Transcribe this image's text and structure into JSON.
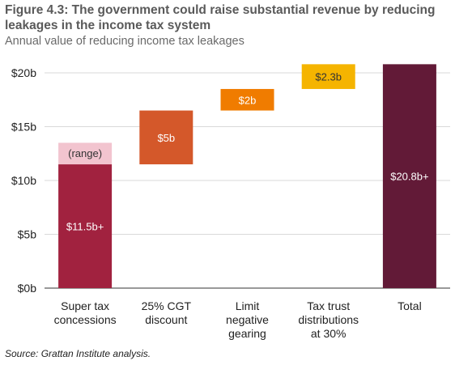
{
  "chart_data": {
    "type": "bar",
    "subtype": "waterfall",
    "title": "Figure 4.3: The government could raise substantial revenue by reducing leakages in the income tax system",
    "subtitle": "Annual value of reducing income tax leakages",
    "source": "Source: Grattan Institute analysis.",
    "ylim": [
      0,
      20
    ],
    "yticks": [
      0,
      5,
      10,
      15,
      20
    ],
    "ytick_labels": [
      "$0b",
      "$5b",
      "$10b",
      "$15b",
      "$20b"
    ],
    "grid": true,
    "categories": [
      [
        "Super tax",
        "concessions"
      ],
      [
        "25% CGT",
        "discount"
      ],
      [
        "Limit",
        "negative",
        "gearing"
      ],
      [
        "Tax trust",
        "distributions",
        "at 30%"
      ],
      [
        "Total"
      ]
    ],
    "bars": [
      {
        "base": 0,
        "value": 11.5,
        "label": "$11.5b+",
        "color": "#a1223f",
        "label_color": "#ffffff"
      },
      {
        "base": 11.5,
        "value": 5,
        "label": "$5b",
        "color": "#d4582a",
        "label_color": "#ffffff"
      },
      {
        "base": 16.5,
        "value": 2,
        "label": "$2b",
        "color": "#f07c00",
        "label_color": "#ffffff"
      },
      {
        "base": 18.5,
        "value": 2.3,
        "label": "$2.3b",
        "color": "#f5b400",
        "label_color": "#333333"
      },
      {
        "base": 0,
        "value": 20.8,
        "label": "$20.8b+",
        "color": "#621a37",
        "label_color": "#ffffff"
      }
    ],
    "range": {
      "category_index": 0,
      "base": 11.5,
      "value": 2.0,
      "label": "(range)",
      "color": "#f2c4cf",
      "label_color": "#333333"
    }
  }
}
